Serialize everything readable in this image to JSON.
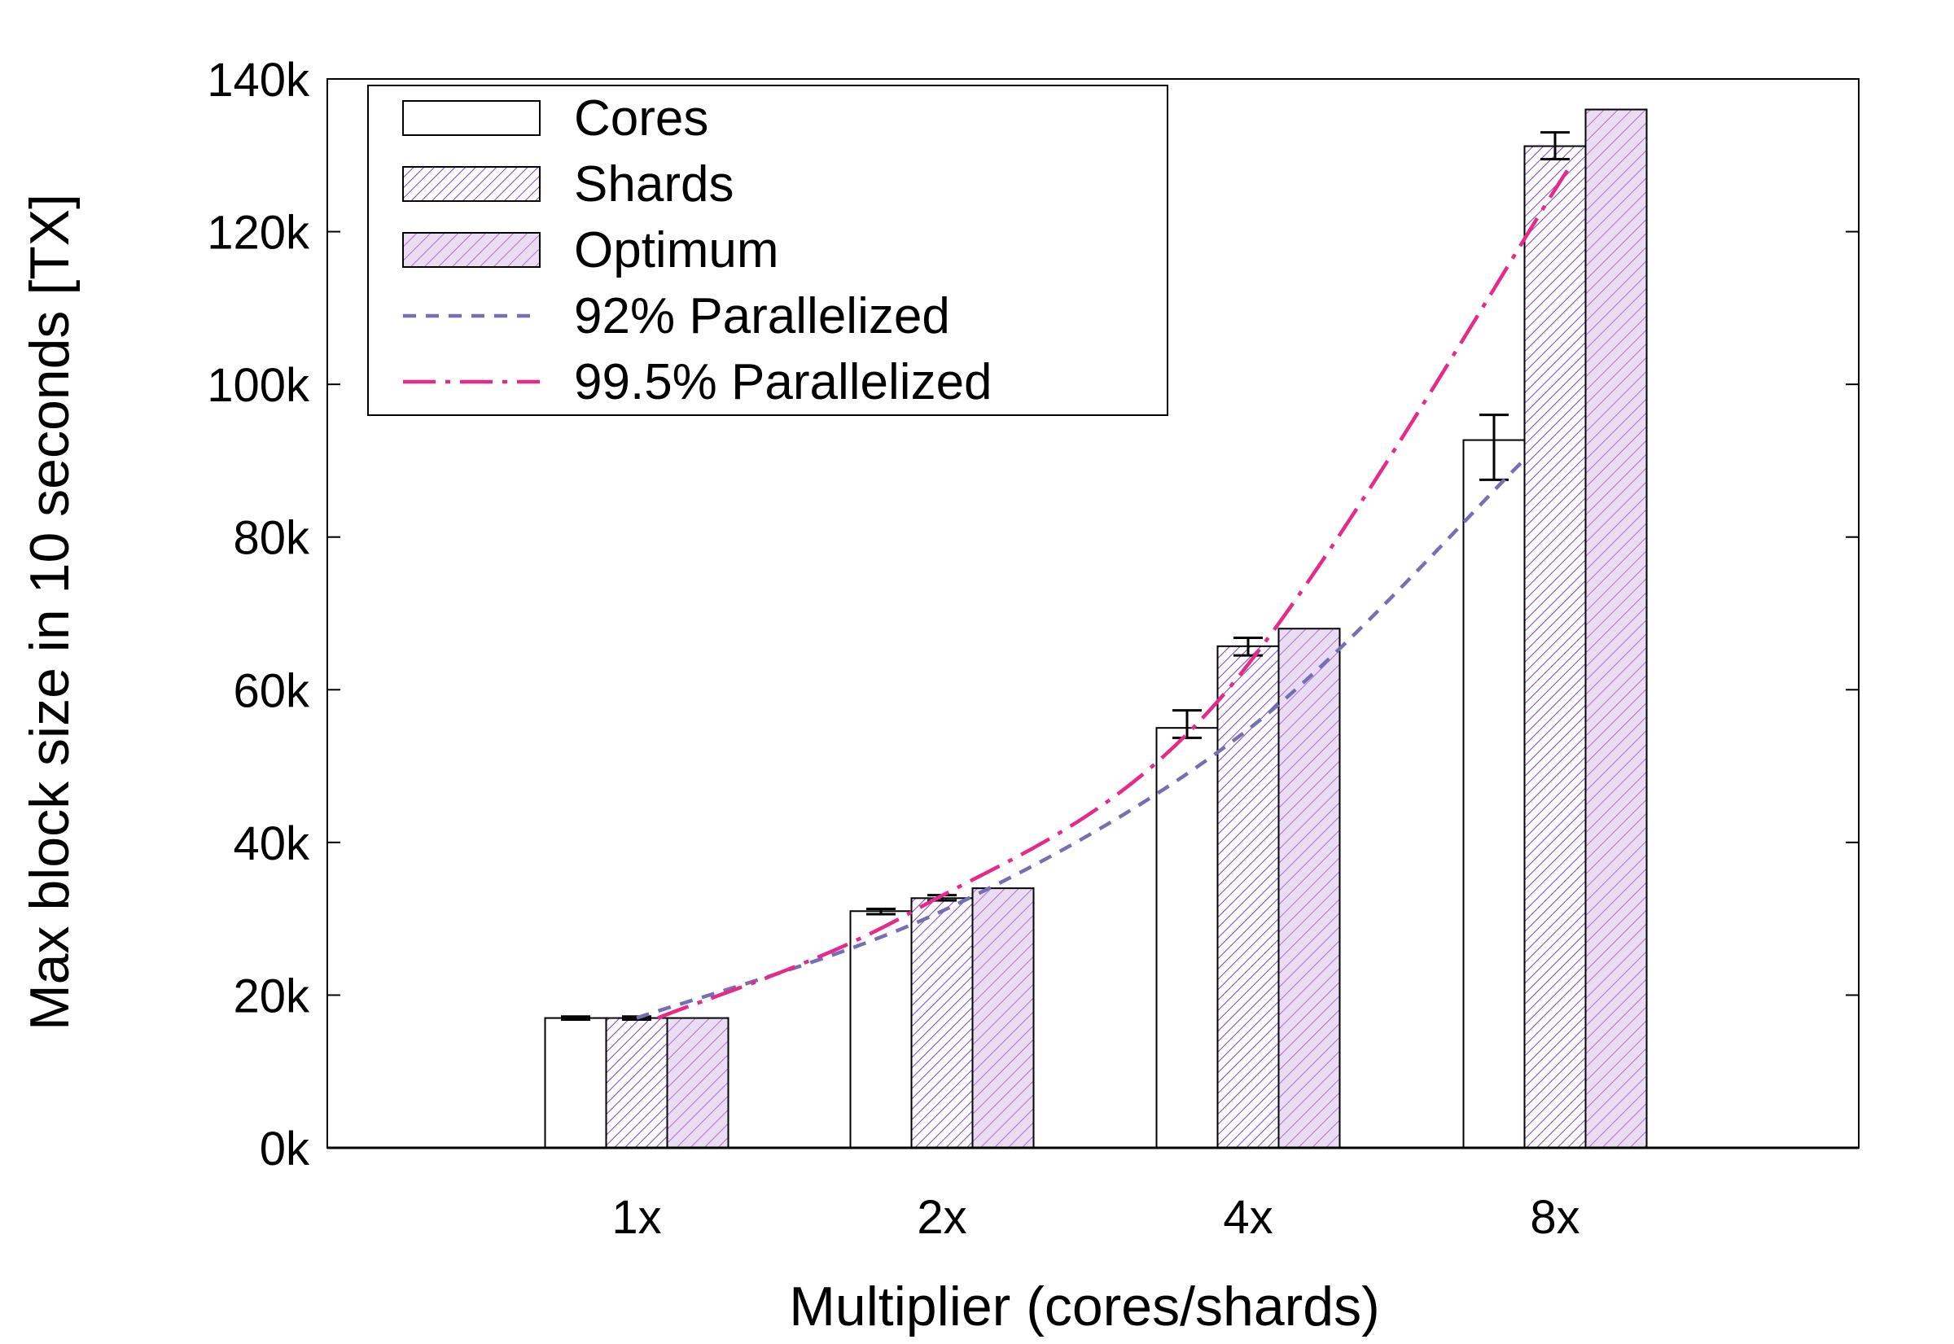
{
  "chart_data": {
    "type": "bar",
    "xlabel": "Multiplier (cores/shards)",
    "ylabel": "Max block size in 10 seconds [TX]",
    "categories": [
      "1x",
      "2x",
      "4x",
      "8x"
    ],
    "multipliers": [
      1,
      2,
      4,
      8
    ],
    "ylim": [
      0,
      140000
    ],
    "yticks": [
      0,
      20000,
      40000,
      60000,
      80000,
      100000,
      120000,
      140000
    ],
    "ytick_labels": [
      "0k",
      "20k",
      "40k",
      "60k",
      "80k",
      "100k",
      "120k",
      "140k"
    ],
    "grid": false,
    "legend_position": "top-left",
    "series": [
      {
        "name": "Cores",
        "kind": "bar",
        "fill": "white",
        "values": [
          17000,
          31000,
          55000,
          92700
        ],
        "errors": [
          [
            16800,
            17200
          ],
          [
            30600,
            31300
          ],
          [
            53700,
            57300
          ],
          [
            87500,
            96000
          ]
        ]
      },
      {
        "name": "Shards",
        "kind": "bar",
        "fill": "hatch-dense",
        "values": [
          17000,
          32700,
          65700,
          131200
        ],
        "errors": [
          [
            16800,
            17200
          ],
          [
            32400,
            33100
          ],
          [
            64500,
            66800
          ],
          [
            129500,
            133000
          ]
        ]
      },
      {
        "name": "Optimum",
        "kind": "bar",
        "fill": "hatch-sparse",
        "values": [
          17000,
          34000,
          68000,
          136000
        ]
      },
      {
        "name": "92% Parallelized",
        "kind": "line",
        "style": "dashed",
        "color": "#7570b3",
        "values": [
          17000,
          31000,
          54800,
          89900
        ]
      },
      {
        "name": "99.5% Parallelized",
        "kind": "line",
        "style": "dashdot",
        "color": "#e7298a",
        "values": [
          17000,
          30900,
          58400,
          128000
        ]
      }
    ],
    "colors": {
      "hatch": "#7b3fd6",
      "optimum_bg": "#eadcf2",
      "line92": "#7570b3",
      "line995": "#e7298a"
    }
  }
}
